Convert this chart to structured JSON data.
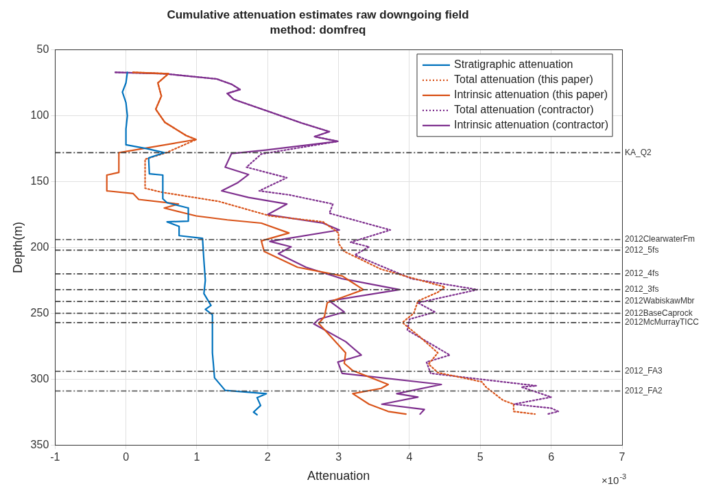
{
  "chart_data": {
    "type": "line",
    "title": "Cumulative attenuation estimates raw downgoing field",
    "subtitle": "method: domfreq",
    "xlabel": "Attenuation",
    "ylabel": "Depth(m)",
    "xlim": [
      -1,
      7
    ],
    "ylim": [
      350,
      50
    ],
    "xticks": [
      -1,
      0,
      1,
      2,
      3,
      4,
      5,
      6,
      7
    ],
    "yticks": [
      50,
      100,
      150,
      200,
      250,
      300,
      350
    ],
    "grid": true,
    "legend": "top right",
    "annotations": [
      "×10$^{-3}$"
    ],
    "series": [
      {
        "name": "Stratigraphic attenuation",
        "color": "#0072bd",
        "line_style": "solid",
        "x": [
          0.02,
          0,
          -0.05,
          0,
          0.02,
          0,
          0,
          0.3,
          0.54,
          0.32,
          0.33,
          0.52,
          0.52,
          0.58,
          0.88,
          0.88,
          0.58,
          0.75,
          0.75,
          1.08,
          1.1,
          1.12,
          1.1,
          1.2,
          1.12,
          1.22,
          1.22,
          1.25,
          1.4,
          1.98,
          1.85,
          1.9,
          1.8,
          1.85
        ],
        "values": [
          67,
          75,
          82,
          90,
          100,
          110,
          122,
          125,
          128,
          132,
          144,
          145,
          163,
          166,
          170,
          180,
          180.5,
          184,
          191,
          193,
          210,
          225,
          235,
          244,
          247,
          251,
          280,
          299,
          308.5,
          311,
          314,
          320,
          325,
          327
        ]
      },
      {
        "name": "Total attenuation (this paper)",
        "color": "#d95319",
        "line_style": "dotted",
        "x": [
          0.1,
          0.6,
          0.45,
          0.5,
          0.42,
          0.55,
          0.7,
          0.85,
          0.99,
          0.57,
          0.27,
          0.27,
          0.5,
          1.31,
          2.03,
          2.78,
          3.0,
          3.0,
          3.08,
          3.6,
          4.06,
          4.5,
          4.4,
          4.12,
          4.06,
          3.9,
          4.15,
          4.4,
          4.27,
          4.4,
          5.02,
          5.08,
          5.32,
          5.47,
          5.47,
          5.77
        ],
        "values": [
          67,
          68,
          75,
          85,
          95,
          105,
          110,
          115,
          118,
          128,
          133,
          155,
          158,
          165,
          176,
          180.5,
          189,
          197,
          203,
          216.5,
          223.5,
          230,
          234,
          240.6,
          250,
          257,
          268,
          280,
          288.5,
          295,
          302,
          306,
          316,
          319,
          324.5,
          326.5
        ]
      },
      {
        "name": "Intrinsic attenuation (this paper)",
        "color": "#d95319",
        "line_style": "solid",
        "x": [
          0.1,
          0.6,
          0.45,
          0.5,
          0.42,
          0.55,
          0.7,
          0.85,
          0.99,
          -0.1,
          -0.1,
          -0.27,
          -0.27,
          0.1,
          0.18,
          0.74,
          0.54,
          0.99,
          1.43,
          1.91,
          2.3,
          1.91,
          1.95,
          2.42,
          3.05,
          3.35,
          2.84,
          2.8,
          2.72,
          3.1,
          3.08,
          3.2,
          3.7,
          3.6,
          3.2,
          3.43,
          3.7,
          3.95
        ],
        "values": [
          67,
          68,
          75,
          85,
          95,
          105,
          110,
          115,
          118,
          128,
          143,
          145,
          157,
          159,
          163.5,
          167,
          170,
          176,
          179,
          181.5,
          189,
          195,
          203,
          215,
          221.6,
          232,
          242,
          252.5,
          257.6,
          280,
          288,
          293.5,
          304,
          307,
          311,
          319,
          324.5,
          326.5
        ]
      },
      {
        "name": "Total attenuation (contractor)",
        "color": "#7e2f8e",
        "line_style": "dotted",
        "x": [
          -0.15,
          0.54,
          1.28,
          1.49,
          1.61,
          1.43,
          1.52,
          2.03,
          2.48,
          2.87,
          2.66,
          2.99,
          1.91,
          1.7,
          2.27,
          1.88,
          2.3,
          2.92,
          2.87,
          3.73,
          3.17,
          3.43,
          3.23,
          3.64,
          4.03,
          4.96,
          4.12,
          4.36,
          4.0,
          3.97,
          4.57,
          4.24,
          4.3,
          5.79,
          5.58,
          6.0,
          5.47,
          6.0,
          6.1,
          5.95
        ],
        "values": [
          67,
          68,
          72,
          76,
          80,
          83,
          87.5,
          97,
          105.5,
          112,
          115.8,
          119.4,
          129,
          139,
          147,
          157,
          160,
          167,
          174,
          186.7,
          196,
          199.5,
          205.7,
          215,
          223.7,
          232,
          242,
          249,
          254.5,
          262.7,
          281.7,
          287,
          295.6,
          305,
          306,
          313.6,
          319,
          322,
          324.5,
          326.5
        ]
      },
      {
        "name": "Intrinsic attenuation (contractor)",
        "color": "#7e2f8e",
        "line_style": "solid",
        "x": [
          -0.15,
          0.54,
          1.28,
          1.49,
          1.61,
          1.43,
          1.52,
          2.03,
          2.48,
          2.87,
          2.66,
          2.99,
          1.97,
          1.49,
          1.4,
          1.73,
          1.58,
          1.35,
          1.73,
          2.27,
          2.0,
          2.78,
          3.01,
          2.03,
          2.33,
          2.15,
          2.54,
          3.05,
          3.86,
          2.87,
          3.08,
          2.72,
          2.65,
          3.1,
          3.32,
          2.99,
          3.05,
          4.45,
          3.82,
          4.12,
          3.61,
          4.21,
          4.15
        ],
        "values": [
          67,
          68,
          72,
          76,
          80,
          83,
          87.5,
          97,
          105.5,
          112,
          115.8,
          119.4,
          126,
          128.6,
          139,
          144.6,
          150.7,
          157,
          162,
          167,
          175,
          181.5,
          186.7,
          195.4,
          199.5,
          204.7,
          215,
          223.7,
          232,
          240.6,
          249,
          254.5,
          258,
          271.5,
          281.7,
          287,
          295.6,
          304,
          311,
          313.6,
          319,
          323,
          326.5
        ]
      }
    ],
    "ref_lines": [
      {
        "axis": "y",
        "value": 128,
        "label": "KA_Q2",
        "color": "#404040",
        "line_style": "dashed"
      },
      {
        "axis": "y",
        "value": 194,
        "label": "2012ClearwaterFm",
        "color": "#404040",
        "line_style": "dashed"
      },
      {
        "axis": "y",
        "value": 202,
        "label": "2012_5fs",
        "color": "#404040",
        "line_style": "dashed"
      },
      {
        "axis": "y",
        "value": 220,
        "label": "2012_4fs",
        "color": "#404040",
        "line_style": "dashed"
      },
      {
        "axis": "y",
        "value": 232,
        "label": "2012_3fs",
        "color": "#404040",
        "line_style": "dashed"
      },
      {
        "axis": "y",
        "value": 241,
        "label": "2012WabiskawMbr",
        "color": "#404040",
        "line_style": "dashed"
      },
      {
        "axis": "y",
        "value": 250,
        "label": "2012BaseCaprock",
        "color": "#404040",
        "line_style": "dashed"
      },
      {
        "axis": "y",
        "value": 257,
        "label": "2012McMurrayTICC",
        "color": "#404040",
        "line_style": "dashed"
      },
      {
        "axis": "y",
        "value": 294,
        "label": "2012_FA3",
        "color": "#404040",
        "line_style": "dashed"
      },
      {
        "axis": "y",
        "value": 309,
        "label": "2012_FA2",
        "color": "#404040",
        "line_style": "dashed"
      }
    ]
  }
}
